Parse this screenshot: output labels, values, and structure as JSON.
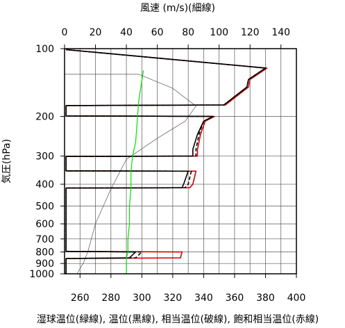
{
  "chart_data": {
    "type": "line",
    "title_top": "風速 (m/s)(細線)",
    "ylabel": "気圧(hPa)",
    "xlabel_bottom": "湿球温位(緑線), 温位(黒線), 相当温位(破線), 飽和相当温位(赤線)",
    "pressure_ticks": [
      100,
      200,
      300,
      400,
      500,
      600,
      700,
      800,
      900,
      1000
    ],
    "pressure_range": [
      100,
      1000
    ],
    "pressure_scale": "log",
    "top_axis": {
      "ticks": [
        0,
        20,
        40,
        60,
        80,
        100,
        120,
        140
      ],
      "range": [
        0,
        150
      ]
    },
    "bottom_axis": {
      "ticks": [
        260,
        280,
        300,
        320,
        340,
        360,
        380,
        400
      ],
      "range": [
        250,
        400
      ]
    },
    "grid": true,
    "series": [
      {
        "name": "湿球温位",
        "color": "#00dd00",
        "units": "K",
        "points": [
          [
            301,
            125
          ],
          [
            298,
            170
          ],
          [
            297,
            210
          ],
          [
            296,
            260
          ],
          [
            294,
            300
          ],
          [
            293,
            350
          ],
          [
            293,
            415
          ],
          [
            292,
            500
          ],
          [
            292,
            600
          ],
          [
            291,
            700
          ],
          [
            291,
            800
          ],
          [
            290,
            850
          ],
          [
            290,
            900
          ],
          [
            290,
            950
          ],
          [
            290,
            1000
          ]
        ]
      },
      {
        "name": "温位",
        "color": "#000000",
        "units": "K",
        "points": [
          [
            251,
            101
          ],
          [
            380,
            122
          ],
          [
            369,
            137
          ],
          [
            368,
            148
          ],
          [
            353,
            178
          ],
          [
            251,
            179
          ],
          [
            251,
            199
          ],
          [
            346,
            200
          ],
          [
            340,
            210
          ],
          [
            336,
            240
          ],
          [
            333,
            280
          ],
          [
            333,
            300
          ],
          [
            251,
            301
          ],
          [
            251,
            349
          ],
          [
            330,
            350
          ],
          [
            327,
            400
          ],
          [
            326,
            415
          ],
          [
            251,
            416
          ],
          [
            251,
            495
          ],
          [
            251,
            505
          ],
          [
            251,
            600
          ],
          [
            251,
            700
          ],
          [
            251,
            795
          ],
          [
            296,
            800
          ],
          [
            292,
            850
          ],
          [
            251,
            855
          ],
          [
            251,
            900
          ],
          [
            251,
            950
          ],
          [
            251,
            1000
          ]
        ]
      },
      {
        "name": "相当温位",
        "color": "#000000",
        "dashed": true,
        "units": "K",
        "points": [
          [
            251,
            101
          ],
          [
            380,
            122
          ],
          [
            369,
            137
          ],
          [
            368,
            148
          ],
          [
            353,
            178
          ],
          [
            251,
            179
          ],
          [
            251,
            199
          ],
          [
            346,
            200
          ],
          [
            340,
            210
          ],
          [
            337,
            240
          ],
          [
            335,
            280
          ],
          [
            335,
            300
          ],
          [
            251,
            301
          ],
          [
            251,
            349
          ],
          [
            332,
            350
          ],
          [
            330,
            400
          ],
          [
            328,
            415
          ],
          [
            251,
            416
          ],
          [
            251,
            495
          ],
          [
            251,
            505
          ],
          [
            251,
            600
          ],
          [
            251,
            700
          ],
          [
            251,
            795
          ],
          [
            300,
            800
          ],
          [
            296,
            850
          ],
          [
            251,
            855
          ],
          [
            251,
            900
          ],
          [
            251,
            950
          ],
          [
            251,
            1000
          ]
        ]
      },
      {
        "name": "飽和相当温位",
        "color": "#cc0000",
        "units": "K",
        "points": [
          [
            251,
            101
          ],
          [
            381,
            122
          ],
          [
            370,
            137
          ],
          [
            369,
            148
          ],
          [
            354,
            178
          ],
          [
            251,
            179
          ],
          [
            251,
            199
          ],
          [
            347,
            200
          ],
          [
            341,
            210
          ],
          [
            338,
            240
          ],
          [
            336,
            280
          ],
          [
            336,
            300
          ],
          [
            251,
            301
          ],
          [
            251,
            349
          ],
          [
            335,
            350
          ],
          [
            333,
            400
          ],
          [
            331,
            415
          ],
          [
            251,
            416
          ],
          [
            251,
            495
          ],
          [
            251,
            505
          ],
          [
            251,
            600
          ],
          [
            251,
            700
          ],
          [
            251,
            795
          ],
          [
            326,
            800
          ],
          [
            325,
            850
          ],
          [
            251,
            855
          ],
          [
            251,
            900
          ],
          [
            251,
            950
          ],
          [
            251,
            1000
          ]
        ]
      },
      {
        "name": "風速",
        "color": "#555555",
        "thin": true,
        "units": "m/s",
        "points": [
          [
            0,
            130
          ],
          [
            48,
            130
          ],
          [
            70,
            150
          ],
          [
            85,
            180
          ],
          [
            78,
            210
          ],
          [
            60,
            250
          ],
          [
            40,
            310
          ],
          [
            36,
            350
          ],
          [
            30,
            420
          ],
          [
            20,
            600
          ],
          [
            15,
            800
          ],
          [
            12,
            900
          ],
          [
            8,
            1000
          ]
        ]
      }
    ]
  }
}
